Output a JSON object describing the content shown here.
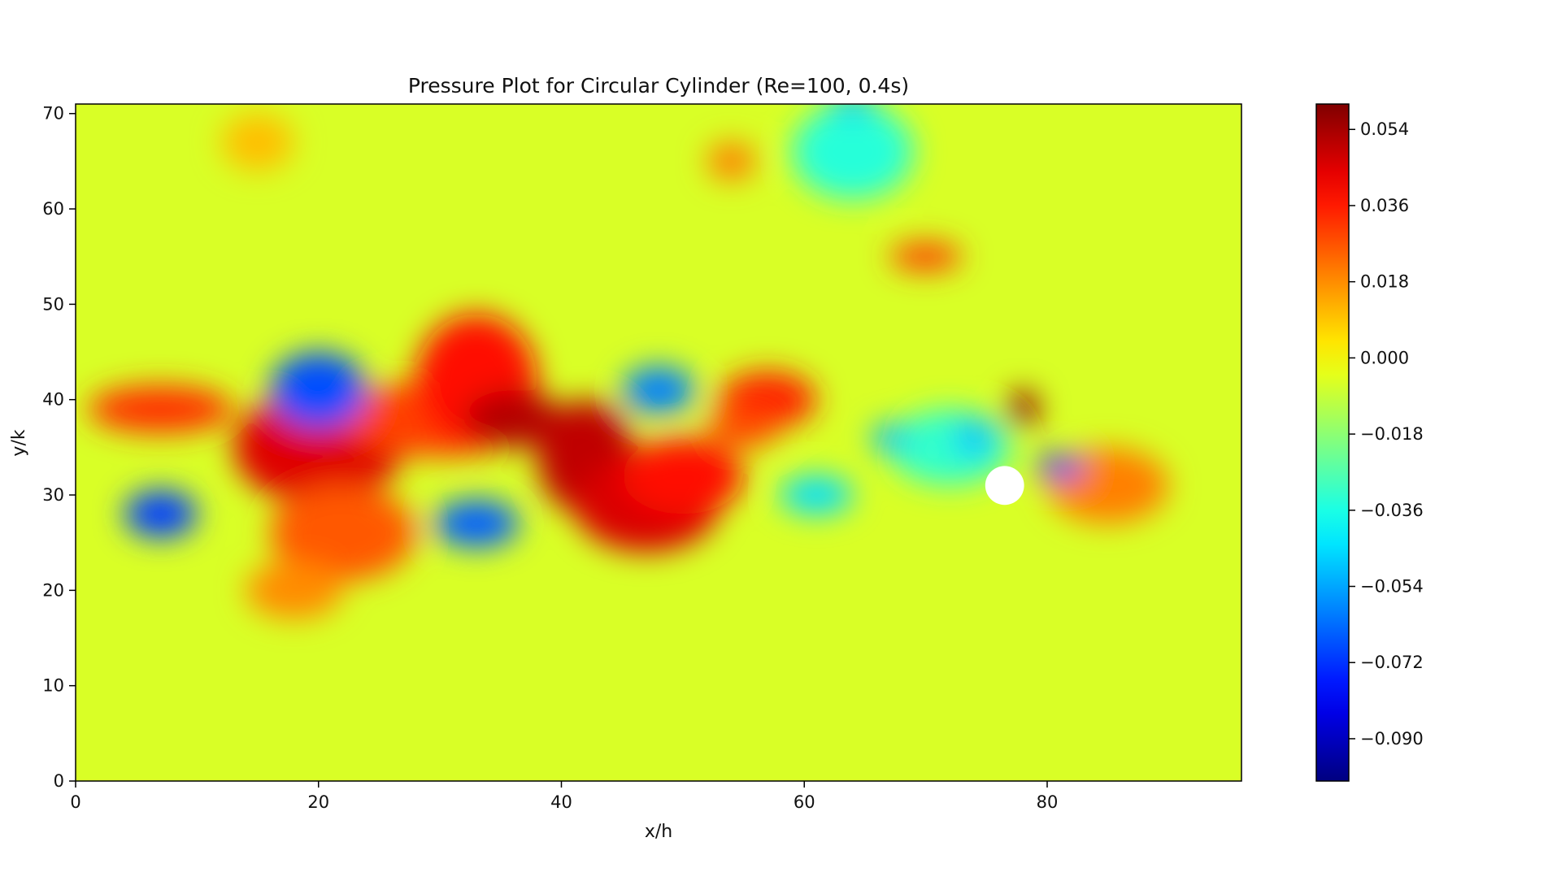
{
  "chart_data": {
    "type": "heatmap",
    "title": "Pressure Plot for Circular Cylinder (Re=100, 0.4s)",
    "xlabel": "x/h",
    "ylabel": "y/k",
    "xlim": [
      0,
      96
    ],
    "ylim": [
      0,
      71
    ],
    "x_ticks": [
      0,
      20,
      40,
      60,
      80
    ],
    "y_ticks": [
      0,
      10,
      20,
      30,
      40,
      50,
      60,
      70
    ],
    "colormap": "jet",
    "value_range": [
      -0.1,
      0.06
    ],
    "colorbar_ticks": [
      "0.054",
      "0.036",
      "0.018",
      "0.000",
      "−0.018",
      "−0.036",
      "−0.054",
      "−0.072",
      "−0.090"
    ],
    "colorbar_tick_values": [
      0.054,
      0.036,
      0.018,
      0.0,
      -0.018,
      -0.036,
      -0.054,
      -0.072,
      -0.09
    ],
    "background_value": -0.006,
    "regions": [
      {
        "x": 7,
        "y": 39,
        "rx": 6,
        "ry": 2.5,
        "value": 0.032
      },
      {
        "x": 20,
        "y": 35,
        "rx": 7,
        "ry": 6,
        "value": 0.045
      },
      {
        "x": 22,
        "y": 26,
        "rx": 6,
        "ry": 5,
        "value": 0.026
      },
      {
        "x": 18,
        "y": 20,
        "rx": 4,
        "ry": 3,
        "value": 0.018
      },
      {
        "x": 30,
        "y": 38,
        "rx": 8,
        "ry": 4,
        "value": 0.03
      },
      {
        "x": 33,
        "y": 42,
        "rx": 5,
        "ry": 7,
        "value": 0.038
      },
      {
        "x": 36,
        "y": 38,
        "rx": 4,
        "ry": 3,
        "value": 0.052
      },
      {
        "x": 42,
        "y": 34,
        "rx": 4,
        "ry": 6,
        "value": 0.05
      },
      {
        "x": 47,
        "y": 29,
        "rx": 6,
        "ry": 5,
        "value": 0.046
      },
      {
        "x": 50,
        "y": 32,
        "rx": 5,
        "ry": 4,
        "value": 0.038
      },
      {
        "x": 57,
        "y": 40,
        "rx": 4,
        "ry": 3,
        "value": 0.035
      },
      {
        "x": 55,
        "y": 37,
        "rx": 3,
        "ry": 2,
        "value": 0.028
      },
      {
        "x": 78,
        "y": 39,
        "rx": 1.3,
        "ry": 2,
        "value": 0.056
      },
      {
        "x": 85,
        "y": 31,
        "rx": 5,
        "ry": 4,
        "value": 0.02
      },
      {
        "x": 70,
        "y": 55,
        "rx": 3,
        "ry": 1.5,
        "value": 0.03
      },
      {
        "x": 54,
        "y": 65,
        "rx": 2,
        "ry": 2,
        "value": 0.02
      },
      {
        "x": 15,
        "y": 67,
        "rx": 3,
        "ry": 3,
        "value": 0.01
      },
      {
        "x": 20,
        "y": 41,
        "rx": 4,
        "ry": 4,
        "value": -0.068
      },
      {
        "x": 7,
        "y": 28,
        "rx": 3,
        "ry": 2.5,
        "value": -0.07
      },
      {
        "x": 33,
        "y": 27,
        "rx": 3.5,
        "ry": 2.5,
        "value": -0.065
      },
      {
        "x": 48,
        "y": 41,
        "rx": 3,
        "ry": 2.5,
        "value": -0.06
      },
      {
        "x": 64,
        "y": 66,
        "rx": 5,
        "ry": 5,
        "value": -0.034
      },
      {
        "x": 64,
        "y": 71,
        "rx": 2,
        "ry": 1,
        "value": -0.05
      },
      {
        "x": 61,
        "y": 30,
        "rx": 3,
        "ry": 2,
        "value": -0.045
      },
      {
        "x": 72,
        "y": 35,
        "rx": 5,
        "ry": 4,
        "value": -0.032
      },
      {
        "x": 81,
        "y": 33,
        "rx": 2,
        "ry": 1.2,
        "value": -0.072
      },
      {
        "x": 74,
        "y": 36,
        "rx": 1.5,
        "ry": 2,
        "value": -0.05
      },
      {
        "x": 67,
        "y": 36,
        "rx": 1.5,
        "ry": 1.5,
        "value": -0.05
      }
    ],
    "cylinder": {
      "x": 76.5,
      "y": 31,
      "r": 1.6
    }
  }
}
